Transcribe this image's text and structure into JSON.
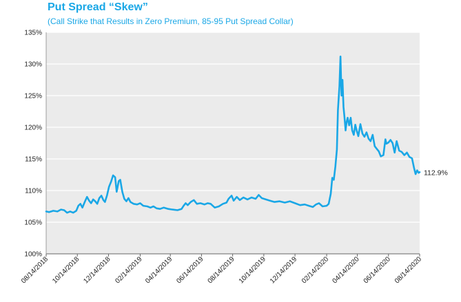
{
  "title": "Put Spread “Skew”",
  "subtitle": "(Call Strike that Results in Zero Premium, 85-95 Put Spread Collar)",
  "chart_data": {
    "type": "line",
    "title": "Put Spread “Skew”",
    "subtitle": "(Call Strike that Results in Zero Premium, 85-95 Put Spread Collar)",
    "xlabel": "",
    "ylabel": "",
    "ylim": [
      100,
      135
    ],
    "yticks": [
      100,
      105,
      110,
      115,
      120,
      125,
      130,
      135
    ],
    "ytick_labels": [
      "100%",
      "105%",
      "110%",
      "115%",
      "120%",
      "125%",
      "130%",
      "135%"
    ],
    "xlim": [
      "2018-08-14",
      "2020-08-14"
    ],
    "xticks": [
      "2018-08-14",
      "2018-10-14",
      "2018-12-14",
      "2019-02-14",
      "2019-04-14",
      "2019-06-14",
      "2019-08-14",
      "2019-10-14",
      "2019-12-14",
      "2020-02-14",
      "2020-04-14",
      "2020-06-14",
      "2020-08-14"
    ],
    "xtick_labels": [
      "08/14/2018",
      "10/14/2018",
      "12/14/2018",
      "02/14/2019",
      "04/14/2019",
      "06/14/2019",
      "08/14/2019",
      "10/14/2019",
      "12/14/2019",
      "02/14/2020",
      "04/14/2020",
      "06/14/2020",
      "08/14/2020"
    ],
    "grid": "horizontal",
    "end_label": "112.9%",
    "series": [
      {
        "color": "#1aa7e6",
        "points": [
          [
            "2018-08-14",
            106.7
          ],
          [
            "2018-08-20",
            106.6
          ],
          [
            "2018-08-28",
            106.8
          ],
          [
            "2018-09-05",
            106.7
          ],
          [
            "2018-09-12",
            107.0
          ],
          [
            "2018-09-18",
            106.9
          ],
          [
            "2018-09-24",
            106.5
          ],
          [
            "2018-09-30",
            106.7
          ],
          [
            "2018-10-06",
            106.5
          ],
          [
            "2018-10-12",
            106.8
          ],
          [
            "2018-10-16",
            107.6
          ],
          [
            "2018-10-20",
            107.9
          ],
          [
            "2018-10-24",
            107.3
          ],
          [
            "2018-10-29",
            108.3
          ],
          [
            "2018-11-02",
            109.0
          ],
          [
            "2018-11-06",
            108.4
          ],
          [
            "2018-11-10",
            108.0
          ],
          [
            "2018-11-14",
            108.6
          ],
          [
            "2018-11-18",
            108.3
          ],
          [
            "2018-11-22",
            107.9
          ],
          [
            "2018-11-26",
            108.8
          ],
          [
            "2018-11-30",
            109.2
          ],
          [
            "2018-12-04",
            108.5
          ],
          [
            "2018-12-07",
            108.2
          ],
          [
            "2018-12-11",
            109.2
          ],
          [
            "2018-12-15",
            110.6
          ],
          [
            "2018-12-19",
            111.4
          ],
          [
            "2018-12-23",
            112.4
          ],
          [
            "2018-12-27",
            112.1
          ],
          [
            "2018-12-30",
            109.8
          ],
          [
            "2019-01-03",
            111.5
          ],
          [
            "2019-01-06",
            111.7
          ],
          [
            "2019-01-10",
            109.8
          ],
          [
            "2019-01-14",
            108.7
          ],
          [
            "2019-01-18",
            108.3
          ],
          [
            "2019-01-22",
            108.8
          ],
          [
            "2019-01-26",
            108.2
          ],
          [
            "2019-02-01",
            107.9
          ],
          [
            "2019-02-08",
            107.8
          ],
          [
            "2019-02-14",
            108.0
          ],
          [
            "2019-02-20",
            107.6
          ],
          [
            "2019-02-28",
            107.5
          ],
          [
            "2019-03-06",
            107.3
          ],
          [
            "2019-03-12",
            107.5
          ],
          [
            "2019-03-18",
            107.2
          ],
          [
            "2019-03-25",
            107.1
          ],
          [
            "2019-04-01",
            107.3
          ],
          [
            "2019-04-10",
            107.1
          ],
          [
            "2019-04-18",
            107.0
          ],
          [
            "2019-04-28",
            106.9
          ],
          [
            "2019-05-06",
            107.1
          ],
          [
            "2019-05-10",
            107.6
          ],
          [
            "2019-05-14",
            108.0
          ],
          [
            "2019-05-18",
            107.7
          ],
          [
            "2019-05-24",
            108.2
          ],
          [
            "2019-05-30",
            108.5
          ],
          [
            "2019-06-05",
            107.9
          ],
          [
            "2019-06-12",
            108.0
          ],
          [
            "2019-06-20",
            107.8
          ],
          [
            "2019-06-26",
            108.0
          ],
          [
            "2019-07-02",
            107.9
          ],
          [
            "2019-07-10",
            107.3
          ],
          [
            "2019-07-18",
            107.5
          ],
          [
            "2019-07-26",
            107.9
          ],
          [
            "2019-08-02",
            108.1
          ],
          [
            "2019-08-06",
            108.7
          ],
          [
            "2019-08-12",
            109.2
          ],
          [
            "2019-08-16",
            108.4
          ],
          [
            "2019-08-22",
            109.0
          ],
          [
            "2019-08-28",
            108.5
          ],
          [
            "2019-09-04",
            108.9
          ],
          [
            "2019-09-12",
            108.6
          ],
          [
            "2019-09-20",
            108.9
          ],
          [
            "2019-09-28",
            108.7
          ],
          [
            "2019-10-04",
            109.3
          ],
          [
            "2019-10-10",
            108.8
          ],
          [
            "2019-10-18",
            108.6
          ],
          [
            "2019-10-26",
            108.4
          ],
          [
            "2019-11-04",
            108.2
          ],
          [
            "2019-11-14",
            108.3
          ],
          [
            "2019-11-24",
            108.1
          ],
          [
            "2019-12-04",
            108.3
          ],
          [
            "2019-12-14",
            108.0
          ],
          [
            "2019-12-24",
            107.7
          ],
          [
            "2020-01-02",
            107.8
          ],
          [
            "2020-01-10",
            107.6
          ],
          [
            "2020-01-18",
            107.4
          ],
          [
            "2020-01-24",
            107.8
          ],
          [
            "2020-01-30",
            108.0
          ],
          [
            "2020-02-06",
            107.5
          ],
          [
            "2020-02-14",
            107.6
          ],
          [
            "2020-02-18",
            107.9
          ],
          [
            "2020-02-22",
            109.5
          ],
          [
            "2020-02-25",
            112.0
          ],
          [
            "2020-02-28",
            111.7
          ],
          [
            "2020-03-02",
            113.8
          ],
          [
            "2020-03-05",
            116.5
          ],
          [
            "2020-03-07",
            122.7
          ],
          [
            "2020-03-10",
            126.5
          ],
          [
            "2020-03-12",
            131.2
          ],
          [
            "2020-03-14",
            125.0
          ],
          [
            "2020-03-16",
            127.5
          ],
          [
            "2020-03-18",
            123.2
          ],
          [
            "2020-03-20",
            121.5
          ],
          [
            "2020-03-22",
            119.5
          ],
          [
            "2020-03-24",
            120.8
          ],
          [
            "2020-03-26",
            121.5
          ],
          [
            "2020-03-29",
            120.3
          ],
          [
            "2020-04-01",
            121.5
          ],
          [
            "2020-04-04",
            119.5
          ],
          [
            "2020-04-07",
            118.8
          ],
          [
            "2020-04-10",
            120.4
          ],
          [
            "2020-04-13",
            119.4
          ],
          [
            "2020-04-16",
            118.6
          ],
          [
            "2020-04-20",
            120.5
          ],
          [
            "2020-04-24",
            119.0
          ],
          [
            "2020-04-28",
            118.5
          ],
          [
            "2020-05-02",
            119.2
          ],
          [
            "2020-05-06",
            118.2
          ],
          [
            "2020-05-10",
            117.8
          ],
          [
            "2020-05-14",
            118.8
          ],
          [
            "2020-05-18",
            117.0
          ],
          [
            "2020-05-22",
            116.6
          ],
          [
            "2020-05-26",
            116.2
          ],
          [
            "2020-05-30",
            115.4
          ],
          [
            "2020-06-04",
            115.6
          ],
          [
            "2020-06-08",
            118.1
          ],
          [
            "2020-06-10",
            117.4
          ],
          [
            "2020-06-14",
            117.6
          ],
          [
            "2020-06-18",
            118.0
          ],
          [
            "2020-06-22",
            117.5
          ],
          [
            "2020-06-26",
            116.0
          ],
          [
            "2020-06-30",
            117.8
          ],
          [
            "2020-07-05",
            116.3
          ],
          [
            "2020-07-10",
            116.1
          ],
          [
            "2020-07-15",
            115.6
          ],
          [
            "2020-07-20",
            116.0
          ],
          [
            "2020-07-25",
            115.3
          ],
          [
            "2020-07-30",
            115.1
          ],
          [
            "2020-08-03",
            113.6
          ],
          [
            "2020-08-06",
            112.6
          ],
          [
            "2020-08-09",
            113.2
          ],
          [
            "2020-08-12",
            112.8
          ],
          [
            "2020-08-14",
            112.9
          ]
        ]
      }
    ]
  }
}
